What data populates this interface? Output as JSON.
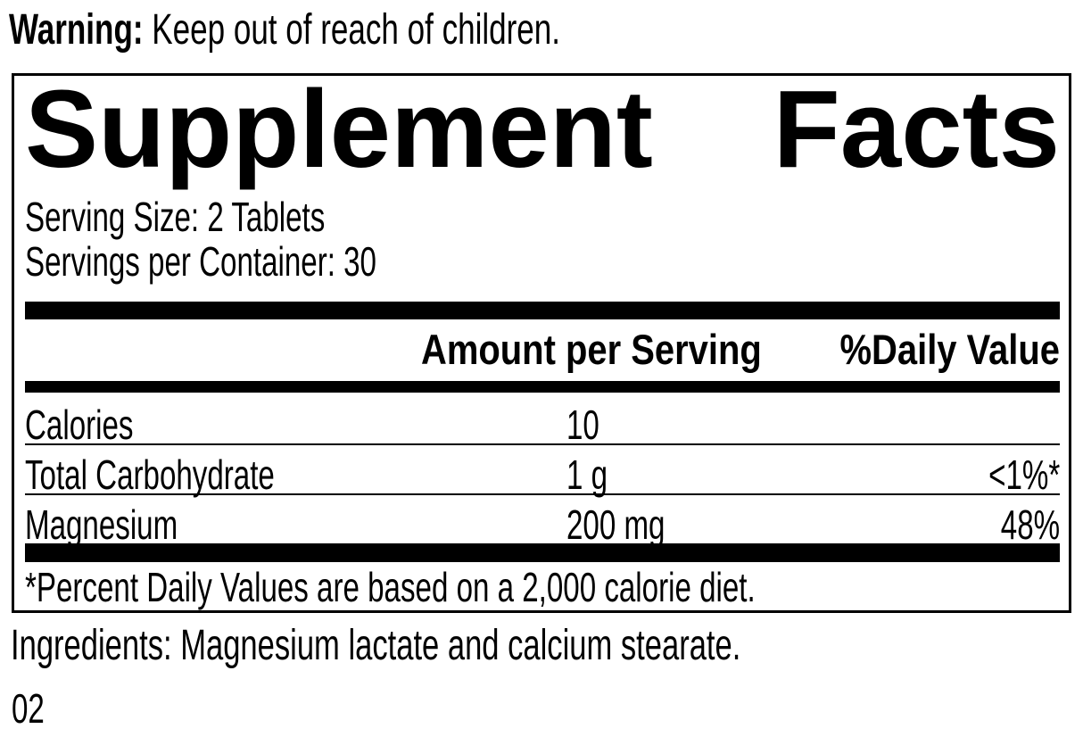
{
  "warning": {
    "label": "Warning:",
    "text": "Keep out of reach of children."
  },
  "panel": {
    "title": "Supplement Facts",
    "title_words": {
      "first": "Supplement",
      "second": "Facts"
    },
    "serving_size": "Serving Size: 2 Tablets",
    "servings_per_container": "Servings per Container: 30",
    "columns": {
      "amount_header": "Amount per Serving",
      "daily_value_header": "%Daily Value"
    },
    "rows": [
      {
        "name": "Calories",
        "amount": "10",
        "daily_value": ""
      },
      {
        "name": "Total Carbohydrate",
        "amount": "1 g",
        "daily_value": "<1%*"
      },
      {
        "name": "Magnesium",
        "amount": "200 mg",
        "daily_value": "48%"
      }
    ],
    "footnote": "*Percent Daily Values are based on a 2,000 calorie diet."
  },
  "ingredients": "Ingredients: Magnesium lactate and calcium stearate.",
  "product_code": "02",
  "colors": {
    "ink": "#000000",
    "background": "#ffffff"
  }
}
